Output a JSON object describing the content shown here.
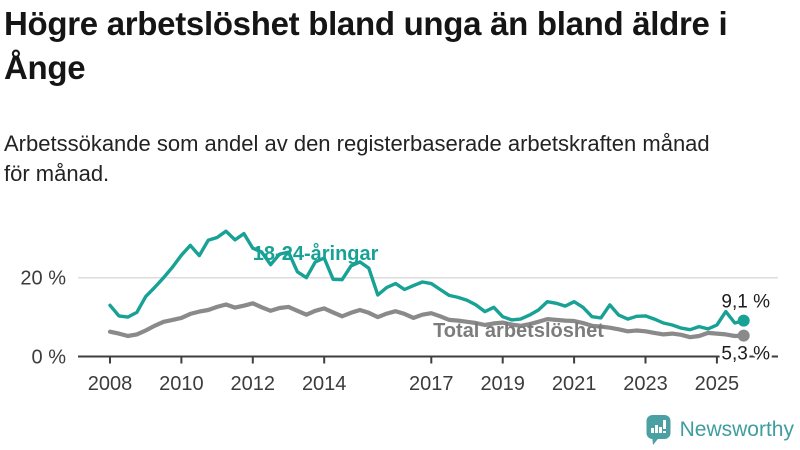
{
  "header": {
    "title_lines": [
      "Högre arbetslöshet bland unga än bland äldre i",
      "Ånge"
    ],
    "subtitle_lines": [
      "Arbetssökande som andel av den registerbaserade arbetskraften månad",
      "för månad."
    ]
  },
  "chart_data": {
    "type": "line",
    "title": "Högre arbetslöshet bland unga än bland äldre i Ånge",
    "subtitle": "Arbetssökande som andel av den registerbaserade arbetskraften månad för månad.",
    "unit": "%",
    "grid": "horizontal-20-only",
    "legend_position": "inline-labels",
    "xlim": [
      2007.6,
      2026.6
    ],
    "ylim": [
      0,
      37
    ],
    "x_ticks": [
      2008,
      2010,
      2012,
      2014,
      2017,
      2019,
      2021,
      2023,
      2025
    ],
    "y_ticks": [
      {
        "value": 0,
        "label": "0 %",
        "grid": false
      },
      {
        "value": 20,
        "label": "20 %",
        "grid": true
      }
    ],
    "x": [
      2008.0,
      2008.25,
      2008.5,
      2008.75,
      2009.0,
      2009.25,
      2009.5,
      2009.75,
      2010.0,
      2010.25,
      2010.5,
      2010.75,
      2011.0,
      2011.25,
      2011.5,
      2011.75,
      2012.0,
      2012.25,
      2012.5,
      2012.75,
      2013.0,
      2013.25,
      2013.5,
      2013.75,
      2014.0,
      2014.25,
      2014.5,
      2014.75,
      2015.0,
      2015.25,
      2015.5,
      2015.75,
      2016.0,
      2016.25,
      2016.5,
      2016.75,
      2017.0,
      2017.25,
      2017.5,
      2017.75,
      2018.0,
      2018.25,
      2018.5,
      2018.75,
      2019.0,
      2019.25,
      2019.5,
      2019.75,
      2020.0,
      2020.25,
      2020.5,
      2020.75,
      2021.0,
      2021.25,
      2021.5,
      2021.75,
      2022.0,
      2022.25,
      2022.5,
      2022.75,
      2023.0,
      2023.25,
      2023.5,
      2023.75,
      2024.0,
      2024.25,
      2024.5,
      2024.75,
      2025.0,
      2025.25,
      2025.5,
      2025.75
    ],
    "series": [
      {
        "name": "Total arbetslöshet",
        "color": "#8a8a8a",
        "label_color": "#7c7c7c",
        "end_label": "5,3 %",
        "end_value": 5.3,
        "label_anchor": {
          "year": 2017.05,
          "value": 6.7
        },
        "end_label_dy": 24,
        "values": [
          6.3,
          5.8,
          5.2,
          5.6,
          6.6,
          7.8,
          8.8,
          9.3,
          9.8,
          10.8,
          11.4,
          11.8,
          12.6,
          13.2,
          12.4,
          12.9,
          13.5,
          12.5,
          11.6,
          12.3,
          12.6,
          11.6,
          10.6,
          11.6,
          12.2,
          11.2,
          10.2,
          11.1,
          11.8,
          11.1,
          10.0,
          10.9,
          11.5,
          10.8,
          9.8,
          10.6,
          11.0,
          10.2,
          9.3,
          9.1,
          8.8,
          8.5,
          8.0,
          8.4,
          8.6,
          8.1,
          7.8,
          8.2,
          8.8,
          9.5,
          9.3,
          9.1,
          9.0,
          8.5,
          7.8,
          7.6,
          7.3,
          6.9,
          6.4,
          6.6,
          6.4,
          6.0,
          5.6,
          5.8,
          5.5,
          4.9,
          5.2,
          6.0,
          5.8,
          5.6,
          5.2,
          5.3
        ]
      },
      {
        "name": "18-24-åringar",
        "color": "#18a195",
        "label_color": "#18a195",
        "end_label": "9,1 %",
        "end_value": 9.1,
        "label_anchor": {
          "year": 2012.0,
          "value": 26.3
        },
        "end_label_dy": -13,
        "values": [
          13.0,
          10.3,
          10.0,
          11.2,
          15.2,
          17.5,
          20.0,
          22.7,
          25.7,
          28.2,
          25.6,
          29.5,
          30.2,
          31.8,
          29.6,
          31.2,
          27.5,
          26.5,
          23.3,
          26.0,
          26.5,
          21.5,
          20.0,
          24.0,
          25.0,
          19.6,
          19.5,
          23.0,
          24.0,
          22.4,
          15.6,
          17.5,
          18.5,
          17.0,
          18.0,
          18.9,
          18.5,
          17.0,
          15.5,
          15.0,
          14.3,
          13.1,
          11.4,
          12.5,
          10.1,
          9.3,
          9.5,
          10.5,
          11.8,
          13.9,
          13.5,
          12.8,
          13.9,
          12.5,
          10.1,
          9.8,
          13.1,
          10.5,
          9.5,
          10.2,
          10.3,
          9.5,
          8.5,
          8.0,
          7.2,
          6.8,
          7.6,
          7.0,
          8.0,
          11.4,
          8.5,
          9.1
        ]
      }
    ],
    "axis_colors": {
      "axis_line": "#3e3e3e",
      "grid_line": "#dcdcdc",
      "tick_text": "#3c3c3c",
      "end_label_text": "#1c1c1c"
    }
  },
  "footer": {
    "brand": "Newsworthy",
    "brand_color": "#3f9da0",
    "icon": "newsworthy-speech-bubble-barchart-icon",
    "icon_color": "#4aa0a3"
  }
}
